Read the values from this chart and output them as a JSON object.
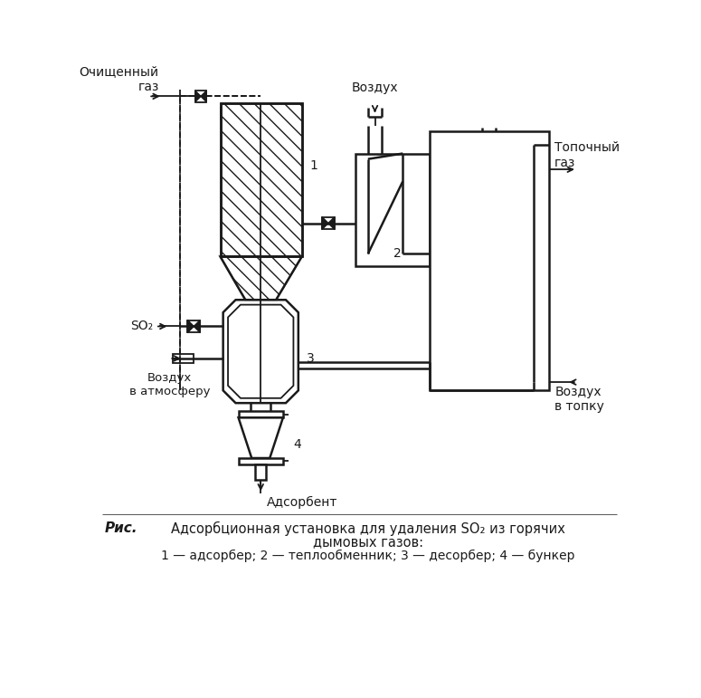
{
  "bg_color": "#ffffff",
  "line_color": "#1a1a1a",
  "title_line1": "Адсорбционная установка для удаления SO₂ из горячих",
  "title_line2": "дымовых газов:",
  "legend_line": "1 — адсорбер; 2 — теплообменник; 3 — десорбер; 4 — бункер",
  "label_ris": "Рис.",
  "label_cleaned_gas": "Очищенный\nгаз",
  "label_air": "Воздух",
  "label_furnace_gas": "Топочный\nгаз",
  "label_so2": "SO₂",
  "label_air_atm": "Воздух\nв атмосферу",
  "label_air_furnace": "Воздух\nв топку",
  "label_adsorbent": "Адсорбент",
  "label_1": "1",
  "label_2": "2",
  "label_3": "3",
  "label_4": "4"
}
